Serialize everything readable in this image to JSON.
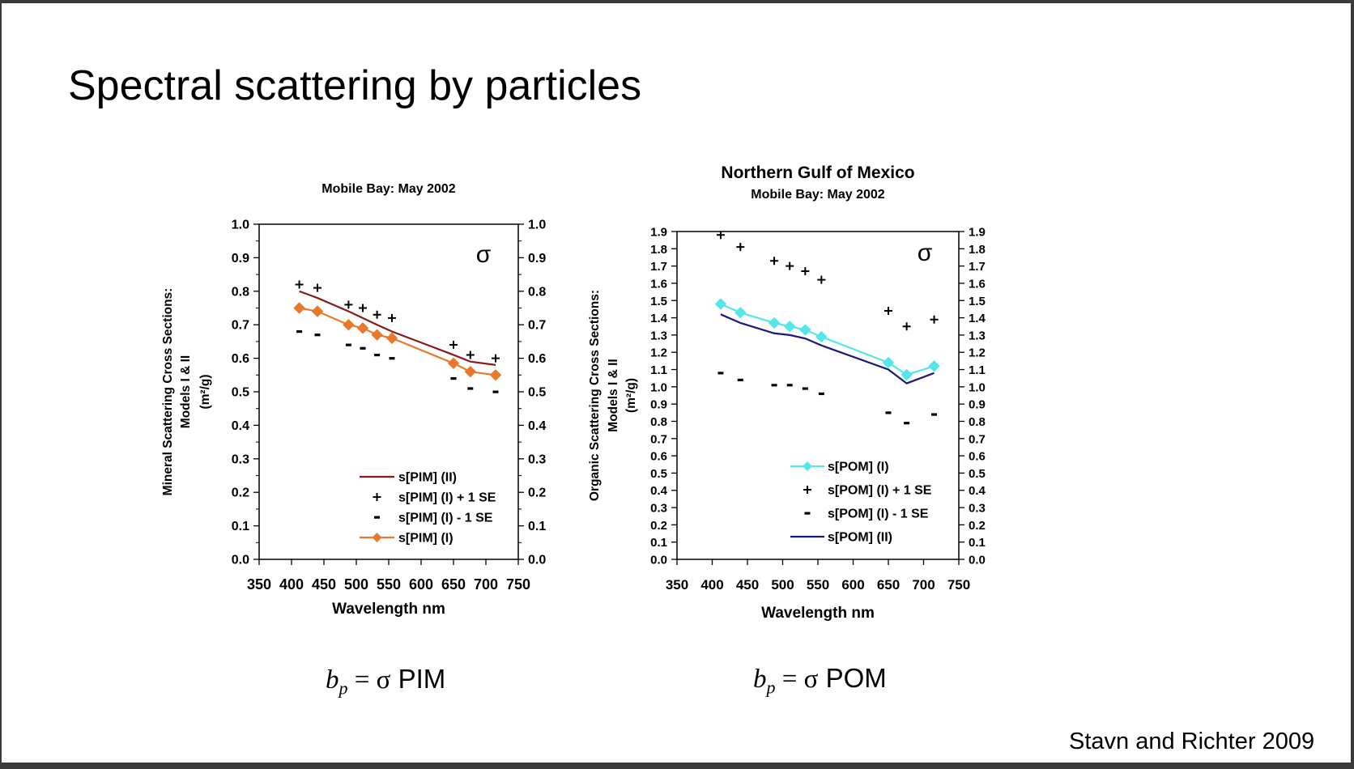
{
  "slide": {
    "title": "Spectral scattering by particles",
    "citation": "Stavn and Richter 2009",
    "formula_left": {
      "b": "b",
      "sub": "p",
      "eq": " = ",
      "sigma": "σ",
      "rest": " PIM"
    },
    "formula_right": {
      "b": "b",
      "sub": "p",
      "eq": " = ",
      "sigma": "σ",
      "rest": " POM"
    }
  },
  "chart_data": [
    {
      "type": "line",
      "title": "",
      "subtitle": "Mobile Bay: May 2002",
      "xlabel": "Wavelength nm",
      "ylabel": [
        "Mineral Scattering Cross Sections:",
        "Models I & II",
        "(m²/g)"
      ],
      "annotation": "σ",
      "xlim": [
        350,
        750
      ],
      "ylim": [
        0,
        1.0
      ],
      "xticks": [
        "350",
        "400",
        "450",
        "500",
        "550",
        "600",
        "650",
        "700",
        "750"
      ],
      "yticks": [
        "0.0",
        "0.1",
        "0.2",
        "0.3",
        "0.4",
        "0.5",
        "0.6",
        "0.7",
        "0.8",
        "0.9",
        "1.0"
      ],
      "legend_position": "bottom-center",
      "series": [
        {
          "name": "s[PIM] (II)",
          "style": "line",
          "color": "#8b1a1a",
          "x": [
            412,
            440,
            488,
            510,
            532,
            555,
            650,
            676,
            715
          ],
          "y": [
            0.8,
            0.78,
            0.74,
            0.72,
            0.7,
            0.68,
            0.61,
            0.59,
            0.58
          ]
        },
        {
          "name": "s[PIM] (I) + 1 SE",
          "style": "plus",
          "color": "#000000",
          "x": [
            412,
            440,
            488,
            510,
            532,
            555,
            650,
            676,
            715
          ],
          "y": [
            0.82,
            0.81,
            0.76,
            0.75,
            0.73,
            0.72,
            0.64,
            0.61,
            0.6
          ]
        },
        {
          "name": "s[PIM] (I) - 1 SE",
          "style": "dash",
          "color": "#000000",
          "x": [
            412,
            440,
            488,
            510,
            532,
            555,
            650,
            676,
            715
          ],
          "y": [
            0.68,
            0.67,
            0.64,
            0.63,
            0.61,
            0.6,
            0.54,
            0.51,
            0.5
          ]
        },
        {
          "name": "s[PIM] (I)",
          "style": "line-diamond",
          "color": "#e8782a",
          "x": [
            412,
            440,
            488,
            510,
            532,
            555,
            650,
            676,
            715
          ],
          "y": [
            0.75,
            0.74,
            0.7,
            0.69,
            0.67,
            0.66,
            0.585,
            0.56,
            0.55
          ]
        }
      ]
    },
    {
      "type": "line",
      "title": "Northern Gulf of Mexico",
      "subtitle": "Mobile Bay: May 2002",
      "xlabel": "Wavelength nm",
      "ylabel": [
        "Organic Scattering Cross Sections:",
        "Models I & II",
        "(m²/g)"
      ],
      "annotation": "σ",
      "xlim": [
        350,
        750
      ],
      "ylim": [
        0,
        1.9
      ],
      "xticks": [
        "350",
        "400",
        "450",
        "500",
        "550",
        "600",
        "650",
        "700",
        "750"
      ],
      "yticks": [
        "0.0",
        "0.1",
        "0.2",
        "0.3",
        "0.4",
        "0.5",
        "0.6",
        "0.7",
        "0.8",
        "0.9",
        "1.0",
        "1.1",
        "1.2",
        "1.3",
        "1.4",
        "1.5",
        "1.6",
        "1.7",
        "1.8",
        "1.9"
      ],
      "legend_position": "bottom-center",
      "series": [
        {
          "name": "s[POM] (I)",
          "style": "line-diamond",
          "color": "#55e6ea",
          "x": [
            412,
            440,
            488,
            510,
            532,
            555,
            650,
            676,
            715
          ],
          "y": [
            1.48,
            1.43,
            1.37,
            1.35,
            1.33,
            1.29,
            1.14,
            1.07,
            1.12
          ]
        },
        {
          "name": "s[POM] (I) + 1 SE",
          "style": "plus",
          "color": "#000000",
          "x": [
            412,
            440,
            488,
            510,
            532,
            555,
            650,
            676,
            715
          ],
          "y": [
            1.88,
            1.81,
            1.73,
            1.7,
            1.67,
            1.62,
            1.44,
            1.35,
            1.39
          ]
        },
        {
          "name": "s[POM] (I) - 1 SE",
          "style": "dash",
          "color": "#000000",
          "x": [
            412,
            440,
            488,
            510,
            532,
            555,
            650,
            676,
            715
          ],
          "y": [
            1.08,
            1.04,
            1.01,
            1.01,
            0.99,
            0.96,
            0.85,
            0.79,
            0.84
          ]
        },
        {
          "name": "s[POM] (II)",
          "style": "line",
          "color": "#1a1a7a",
          "x": [
            412,
            440,
            488,
            510,
            532,
            555,
            650,
            676,
            715
          ],
          "y": [
            1.42,
            1.37,
            1.31,
            1.3,
            1.28,
            1.24,
            1.1,
            1.02,
            1.08
          ]
        }
      ]
    }
  ]
}
